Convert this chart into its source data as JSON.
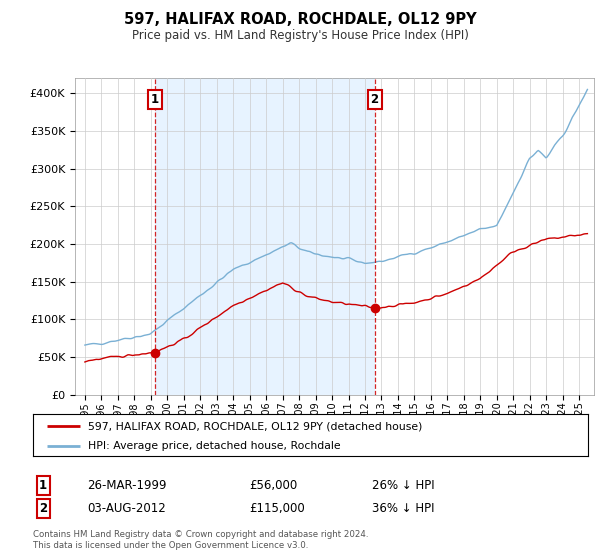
{
  "title": "597, HALIFAX ROAD, ROCHDALE, OL12 9PY",
  "subtitle": "Price paid vs. HM Land Registry's House Price Index (HPI)",
  "ylabel_ticks": [
    "£0",
    "£50K",
    "£100K",
    "£150K",
    "£200K",
    "£250K",
    "£300K",
    "£350K",
    "£400K"
  ],
  "ytick_values": [
    0,
    50000,
    100000,
    150000,
    200000,
    250000,
    300000,
    350000,
    400000
  ],
  "ylim": [
    0,
    420000
  ],
  "sale1_year": 1999.23,
  "sale1_price": 56000,
  "sale2_year": 2012.58,
  "sale2_price": 115000,
  "red_color": "#cc0000",
  "blue_color": "#7ab0d4",
  "shade_color": "#ddeeff",
  "annotation_box_color": "#cc0000",
  "grid_color": "#cccccc",
  "bg_color": "#ffffff",
  "legend_label_red": "597, HALIFAX ROAD, ROCHDALE, OL12 9PY (detached house)",
  "legend_label_blue": "HPI: Average price, detached house, Rochdale",
  "table_row1_num": "1",
  "table_row1_date": "26-MAR-1999",
  "table_row1_price": "£56,000",
  "table_row1_hpi": "26% ↓ HPI",
  "table_row2_num": "2",
  "table_row2_date": "03-AUG-2012",
  "table_row2_price": "£115,000",
  "table_row2_hpi": "36% ↓ HPI",
  "footnote": "Contains HM Land Registry data © Crown copyright and database right 2024.\nThis data is licensed under the Open Government Licence v3.0."
}
